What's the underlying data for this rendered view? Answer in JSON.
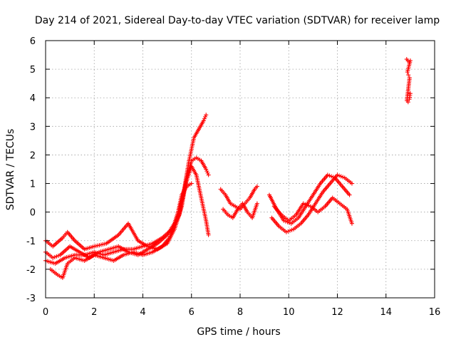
{
  "chart_data": {
    "type": "scatter",
    "title": "Day 214 of 2021, Sidereal Day-to-day VTEC variation (SDTVAR) for receiver lamp",
    "xlabel": "GPS time / hours",
    "ylabel": "SDTVAR / TECUs",
    "xlim": [
      0,
      16
    ],
    "ylim": [
      -3,
      6
    ],
    "xticks": [
      "0",
      "2",
      "4",
      "6",
      "8",
      "10",
      "12",
      "14",
      "16"
    ],
    "yticks": [
      "-3",
      "-2",
      "-1",
      "0",
      "1",
      "2",
      "3",
      "4",
      "5",
      "6"
    ],
    "grid": true,
    "marker": "+",
    "color": "#ff0000",
    "series": [
      {
        "name": "track-1",
        "x": [
          0.0,
          0.3,
          0.7,
          0.9,
          1.2,
          1.6,
          2.0,
          2.5,
          3.0,
          3.4,
          3.8,
          4.2,
          4.6,
          5.0,
          5.3,
          5.6,
          5.8,
          6.0,
          6.2,
          6.4,
          6.6,
          6.7
        ],
        "y": [
          -1.0,
          -1.2,
          -0.9,
          -0.7,
          -1.0,
          -1.3,
          -1.2,
          -1.1,
          -0.8,
          -0.4,
          -1.0,
          -1.2,
          -1.3,
          -1.1,
          -0.6,
          0.2,
          1.2,
          1.8,
          1.9,
          1.8,
          1.5,
          1.3
        ]
      },
      {
        "name": "track-2",
        "x": [
          0.0,
          0.3,
          0.6,
          1.0,
          1.4,
          1.8,
          2.2,
          2.6,
          3.0,
          3.4,
          3.8,
          4.2,
          4.6,
          5.0,
          5.3,
          5.6,
          5.8,
          6.0,
          6.2,
          6.4,
          6.6,
          6.7
        ],
        "y": [
          -1.4,
          -1.6,
          -1.5,
          -1.2,
          -1.4,
          -1.6,
          -1.4,
          -1.3,
          -1.2,
          -1.4,
          -1.5,
          -1.3,
          -1.1,
          -0.8,
          -0.4,
          0.4,
          1.1,
          1.6,
          1.3,
          0.5,
          -0.3,
          -0.8
        ]
      },
      {
        "name": "track-3",
        "x": [
          0.0,
          0.4,
          0.8,
          1.2,
          1.6,
          2.0,
          2.4,
          2.8,
          3.2,
          3.6,
          4.0,
          4.4,
          4.8,
          5.2,
          5.5,
          5.7,
          5.9,
          6.1,
          6.3,
          6.5,
          6.6
        ],
        "y": [
          -1.7,
          -1.8,
          -1.6,
          -1.5,
          -1.5,
          -1.4,
          -1.5,
          -1.4,
          -1.3,
          -1.3,
          -1.2,
          -1.1,
          -0.9,
          -0.6,
          -0.1,
          0.8,
          1.8,
          2.6,
          2.9,
          3.2,
          3.4
        ]
      },
      {
        "name": "track-4",
        "x": [
          0.2,
          0.5,
          0.7,
          0.9,
          1.2,
          1.6,
          2.0,
          2.4,
          2.8,
          3.2,
          3.6,
          4.0,
          4.4,
          4.8,
          5.1,
          5.4,
          5.6,
          5.8,
          6.0
        ],
        "y": [
          -2.0,
          -2.2,
          -2.3,
          -1.8,
          -1.6,
          -1.7,
          -1.5,
          -1.6,
          -1.7,
          -1.5,
          -1.4,
          -1.5,
          -1.4,
          -1.2,
          -0.9,
          -0.2,
          0.6,
          0.9,
          1.0
        ]
      },
      {
        "name": "track-5",
        "x": [
          7.2,
          7.4,
          7.6,
          7.8,
          8.0,
          8.2,
          8.4,
          8.6,
          8.7
        ],
        "y": [
          0.8,
          0.6,
          0.3,
          0.2,
          0.1,
          0.3,
          0.5,
          0.8,
          0.9
        ]
      },
      {
        "name": "track-6",
        "x": [
          7.3,
          7.5,
          7.7,
          7.9,
          8.1,
          8.3,
          8.5,
          8.7
        ],
        "y": [
          0.1,
          -0.1,
          -0.2,
          0.1,
          0.3,
          0.0,
          -0.2,
          0.3
        ]
      },
      {
        "name": "track-7",
        "x": [
          9.2,
          9.5,
          9.8,
          10.1,
          10.4,
          10.7,
          11.0,
          11.3,
          11.6,
          11.9,
          12.2,
          12.5
        ],
        "y": [
          0.6,
          0.1,
          -0.3,
          -0.4,
          -0.2,
          0.2,
          0.6,
          1.0,
          1.3,
          1.2,
          0.9,
          0.6
        ]
      },
      {
        "name": "track-8",
        "x": [
          9.3,
          9.6,
          9.9,
          10.2,
          10.5,
          10.8,
          11.1,
          11.4,
          11.7,
          12.0,
          12.3,
          12.6
        ],
        "y": [
          -0.2,
          -0.5,
          -0.7,
          -0.6,
          -0.4,
          -0.1,
          0.3,
          0.7,
          1.0,
          1.3,
          1.2,
          1.0
        ]
      },
      {
        "name": "track-9",
        "x": [
          9.4,
          9.7,
          10.0,
          10.3,
          10.6,
          10.9,
          11.2,
          11.5,
          11.8,
          12.1,
          12.4,
          12.6
        ],
        "y": [
          0.2,
          -0.1,
          -0.3,
          -0.1,
          0.3,
          0.2,
          0.0,
          0.2,
          0.5,
          0.3,
          0.1,
          -0.4
        ]
      },
      {
        "name": "track-10",
        "x": [
          14.85,
          14.9,
          14.95,
          15.0,
          14.88,
          14.92,
          14.97,
          14.86,
          14.91,
          14.96,
          15.0
        ],
        "y": [
          5.35,
          5.3,
          5.25,
          5.3,
          4.9,
          4.8,
          4.7,
          3.9,
          3.85,
          3.95,
          4.15
        ]
      }
    ]
  }
}
